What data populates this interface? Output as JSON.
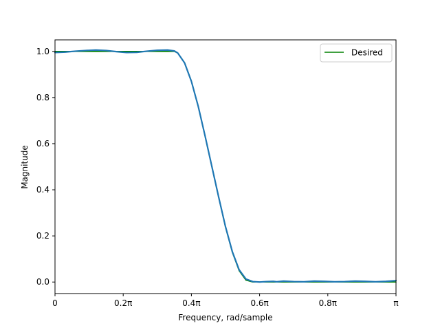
{
  "chart_data": {
    "type": "line",
    "title": "",
    "xlabel": "Frequency, rad/sample",
    "ylabel": "Magnitude",
    "xlim": [
      0,
      1
    ],
    "ylim": [
      -0.05,
      1.05
    ],
    "x_unit": "π rad/sample",
    "grid": false,
    "legend_placement": "top-right",
    "x_ticks": [
      {
        "value": 0,
        "label": "0"
      },
      {
        "value": 0.2,
        "label": "0.2π"
      },
      {
        "value": 0.4,
        "label": "0.4π"
      },
      {
        "value": 0.6,
        "label": "0.6π"
      },
      {
        "value": 0.8,
        "label": "0.8π"
      },
      {
        "value": 1.0,
        "label": "π"
      }
    ],
    "y_ticks": [
      {
        "value": 0.0,
        "label": "0.0"
      },
      {
        "value": 0.2,
        "label": "0.2"
      },
      {
        "value": 0.4,
        "label": "0.4"
      },
      {
        "value": 0.6,
        "label": "0.6"
      },
      {
        "value": 0.8,
        "label": "0.8"
      },
      {
        "value": 1.0,
        "label": "1.0"
      }
    ],
    "series": [
      {
        "name": "Desired",
        "color": "#008000",
        "in_legend": true,
        "x": [
          0,
          0.35,
          0.36,
          0.38,
          0.4,
          0.42,
          0.44,
          0.46,
          0.48,
          0.5,
          0.52,
          0.54,
          0.56,
          0.58,
          0.6,
          0.62,
          0.64,
          0.65,
          1.0
        ],
        "y": [
          1.0,
          1.0,
          0.993,
          0.951,
          0.871,
          0.762,
          0.633,
          0.5,
          0.367,
          0.238,
          0.129,
          0.049,
          0.008,
          0.0,
          0.0,
          0.0,
          0.0,
          0.0,
          0.0
        ]
      },
      {
        "name": "",
        "color": "#1f77b4",
        "in_legend": false,
        "x": [
          0,
          0.03,
          0.06,
          0.09,
          0.12,
          0.15,
          0.18,
          0.21,
          0.24,
          0.27,
          0.3,
          0.33,
          0.35,
          0.36,
          0.38,
          0.4,
          0.42,
          0.44,
          0.46,
          0.48,
          0.5,
          0.52,
          0.54,
          0.56,
          0.58,
          0.6,
          0.62,
          0.64,
          0.65,
          0.67,
          0.7,
          0.73,
          0.76,
          0.79,
          0.82,
          0.85,
          0.88,
          0.91,
          0.94,
          0.97,
          1.0
        ],
        "y": [
          0.995,
          0.997,
          1.001,
          1.004,
          1.006,
          1.004,
          0.999,
          0.995,
          0.996,
          1.001,
          1.005,
          1.006,
          1.002,
          0.993,
          0.95,
          0.87,
          0.762,
          0.634,
          0.501,
          0.368,
          0.24,
          0.132,
          0.053,
          0.013,
          0.002,
          0.0,
          0.002,
          0.003,
          0.001,
          0.004,
          0.002,
          0.001,
          0.004,
          0.003,
          0.001,
          0.002,
          0.004,
          0.003,
          0.001,
          0.003,
          0.006
        ]
      }
    ]
  }
}
